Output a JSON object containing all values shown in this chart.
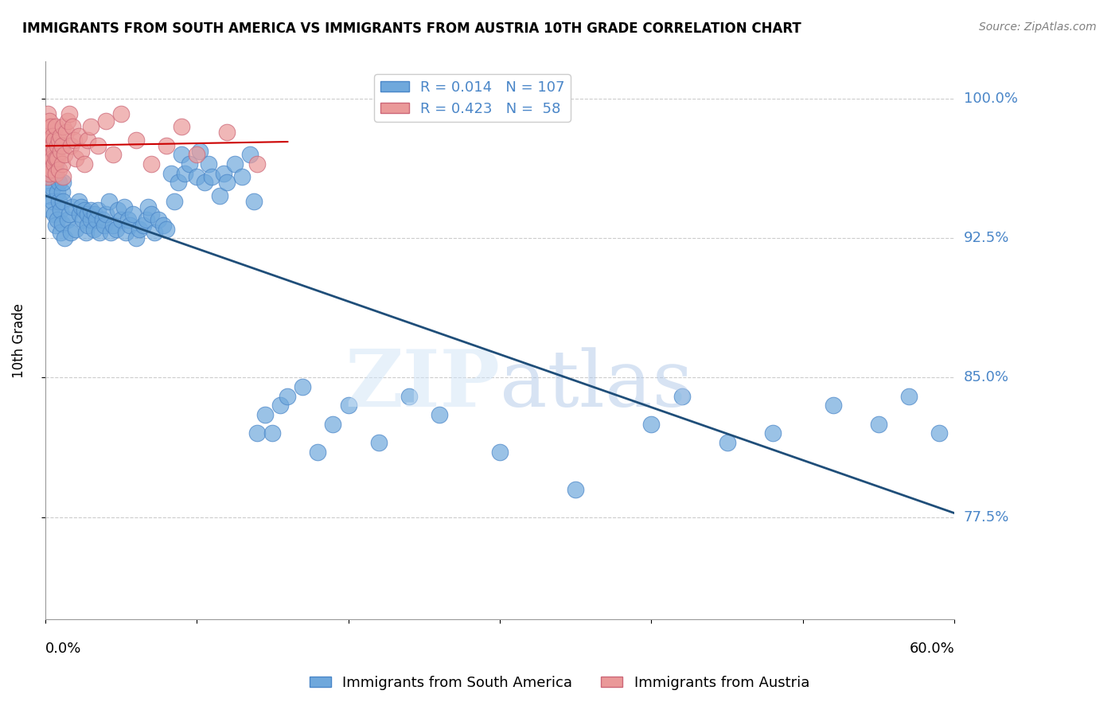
{
  "title": "IMMIGRANTS FROM SOUTH AMERICA VS IMMIGRANTS FROM AUSTRIA 10TH GRADE CORRELATION CHART",
  "source": "Source: ZipAtlas.com",
  "ylabel": "10th Grade",
  "y_tick_labels": [
    "77.5%",
    "85.0%",
    "92.5%",
    "100.0%"
  ],
  "y_tick_values": [
    0.775,
    0.85,
    0.925,
    1.0
  ],
  "x_lim": [
    0.0,
    0.6
  ],
  "y_lim": [
    0.72,
    1.02
  ],
  "blue_color": "#6fa8dc",
  "pink_color": "#ea9999",
  "blue_edge": "#4a86c8",
  "pink_edge": "#cc6677",
  "trend_blue": "#1f4e79",
  "trend_pink": "#cc0000",
  "south_america_x": [
    0.001,
    0.002,
    0.003,
    0.003,
    0.004,
    0.004,
    0.005,
    0.005,
    0.006,
    0.006,
    0.007,
    0.007,
    0.008,
    0.008,
    0.009,
    0.009,
    0.01,
    0.01,
    0.011,
    0.011,
    0.012,
    0.012,
    0.013,
    0.015,
    0.016,
    0.017,
    0.018,
    0.02,
    0.022,
    0.023,
    0.024,
    0.025,
    0.026,
    0.027,
    0.028,
    0.028,
    0.03,
    0.03,
    0.032,
    0.033,
    0.034,
    0.035,
    0.036,
    0.038,
    0.039,
    0.04,
    0.042,
    0.043,
    0.045,
    0.047,
    0.048,
    0.05,
    0.052,
    0.053,
    0.055,
    0.056,
    0.058,
    0.06,
    0.062,
    0.065,
    0.067,
    0.068,
    0.07,
    0.072,
    0.075,
    0.078,
    0.08,
    0.083,
    0.085,
    0.088,
    0.09,
    0.092,
    0.095,
    0.1,
    0.102,
    0.105,
    0.108,
    0.11,
    0.115,
    0.118,
    0.12,
    0.125,
    0.13,
    0.135,
    0.138,
    0.14,
    0.145,
    0.15,
    0.155,
    0.16,
    0.17,
    0.18,
    0.19,
    0.2,
    0.22,
    0.24,
    0.26,
    0.3,
    0.35,
    0.4,
    0.42,
    0.45,
    0.48,
    0.52,
    0.55,
    0.57,
    0.59
  ],
  "south_america_y": [
    0.955,
    0.962,
    0.948,
    0.958,
    0.97,
    0.94,
    0.952,
    0.945,
    0.938,
    0.96,
    0.932,
    0.965,
    0.95,
    0.935,
    0.945,
    0.955,
    0.928,
    0.94,
    0.933,
    0.95,
    0.945,
    0.955,
    0.925,
    0.935,
    0.938,
    0.928,
    0.942,
    0.93,
    0.945,
    0.938,
    0.942,
    0.935,
    0.94,
    0.928,
    0.932,
    0.938,
    0.935,
    0.94,
    0.93,
    0.938,
    0.935,
    0.94,
    0.928,
    0.935,
    0.932,
    0.938,
    0.945,
    0.928,
    0.932,
    0.93,
    0.94,
    0.935,
    0.942,
    0.928,
    0.935,
    0.932,
    0.938,
    0.925,
    0.93,
    0.932,
    0.935,
    0.942,
    0.938,
    0.928,
    0.935,
    0.932,
    0.93,
    0.96,
    0.945,
    0.955,
    0.97,
    0.96,
    0.965,
    0.958,
    0.972,
    0.955,
    0.965,
    0.958,
    0.948,
    0.96,
    0.955,
    0.965,
    0.958,
    0.97,
    0.945,
    0.82,
    0.83,
    0.82,
    0.835,
    0.84,
    0.845,
    0.81,
    0.825,
    0.835,
    0.815,
    0.84,
    0.83,
    0.81,
    0.79,
    0.825,
    0.84,
    0.815,
    0.82,
    0.835,
    0.825,
    0.84,
    0.82
  ],
  "austria_x": [
    0.001,
    0.001,
    0.001,
    0.002,
    0.002,
    0.002,
    0.002,
    0.003,
    0.003,
    0.003,
    0.003,
    0.004,
    0.004,
    0.004,
    0.004,
    0.005,
    0.005,
    0.005,
    0.006,
    0.006,
    0.006,
    0.007,
    0.007,
    0.007,
    0.008,
    0.008,
    0.009,
    0.009,
    0.01,
    0.01,
    0.011,
    0.011,
    0.012,
    0.012,
    0.013,
    0.014,
    0.015,
    0.016,
    0.017,
    0.018,
    0.019,
    0.02,
    0.022,
    0.024,
    0.026,
    0.028,
    0.03,
    0.035,
    0.04,
    0.045,
    0.05,
    0.06,
    0.07,
    0.08,
    0.09,
    0.1,
    0.12,
    0.14
  ],
  "austria_y": [
    0.985,
    0.978,
    0.972,
    0.965,
    0.958,
    0.992,
    0.98,
    0.975,
    0.968,
    0.96,
    0.988,
    0.978,
    0.97,
    0.962,
    0.985,
    0.975,
    0.968,
    0.98,
    0.972,
    0.965,
    0.978,
    0.968,
    0.96,
    0.985,
    0.975,
    0.968,
    0.978,
    0.962,
    0.972,
    0.98,
    0.965,
    0.975,
    0.985,
    0.958,
    0.97,
    0.982,
    0.988,
    0.992,
    0.975,
    0.985,
    0.978,
    0.968,
    0.98,
    0.972,
    0.965,
    0.978,
    0.985,
    0.975,
    0.988,
    0.97,
    0.992,
    0.978,
    0.965,
    0.975,
    0.985,
    0.97,
    0.982,
    0.965
  ]
}
